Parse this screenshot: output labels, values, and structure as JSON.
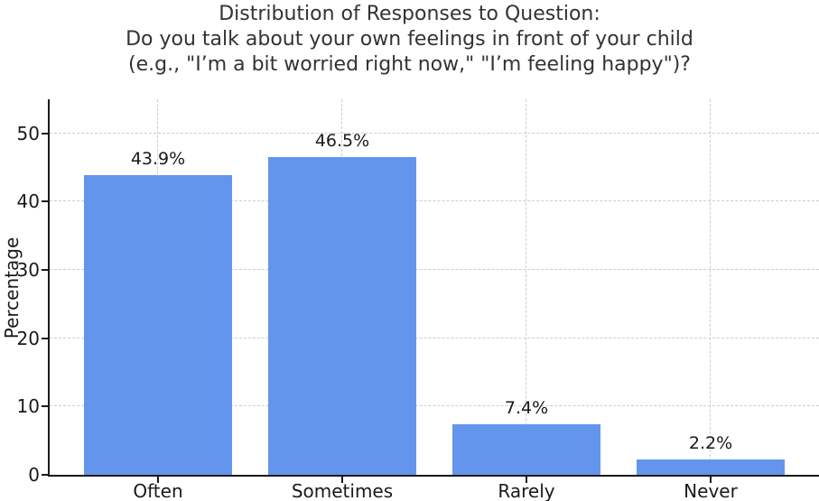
{
  "chart_data": {
    "type": "bar",
    "title_lines": [
      "Distribution of Responses to Question:",
      "Do you talk about your own feelings in front of your child",
      "(e.g., \"I’m a bit worried right now,\" \"I’m feeling happy\")?"
    ],
    "categories": [
      "Often",
      "Sometimes",
      "Rarely",
      "Never"
    ],
    "values": [
      43.9,
      46.5,
      7.4,
      2.2
    ],
    "bar_labels": [
      "43.9%",
      "46.5%",
      "7.4%",
      "2.2%"
    ],
    "xlabel": "",
    "ylabel": "Percentage",
    "yticks": [
      0,
      10,
      20,
      30,
      40,
      50
    ],
    "ylim": [
      0,
      55
    ],
    "grid": {
      "visible": true,
      "style": "dashed",
      "axes": "both"
    },
    "legend": {
      "visible": false
    },
    "colors": {
      "bar": "#6495ED",
      "grid": "#cccccc",
      "spine": "#1a1a1a",
      "text": "#1a1a1a",
      "title": "#333333",
      "background": "#ffffff"
    }
  }
}
